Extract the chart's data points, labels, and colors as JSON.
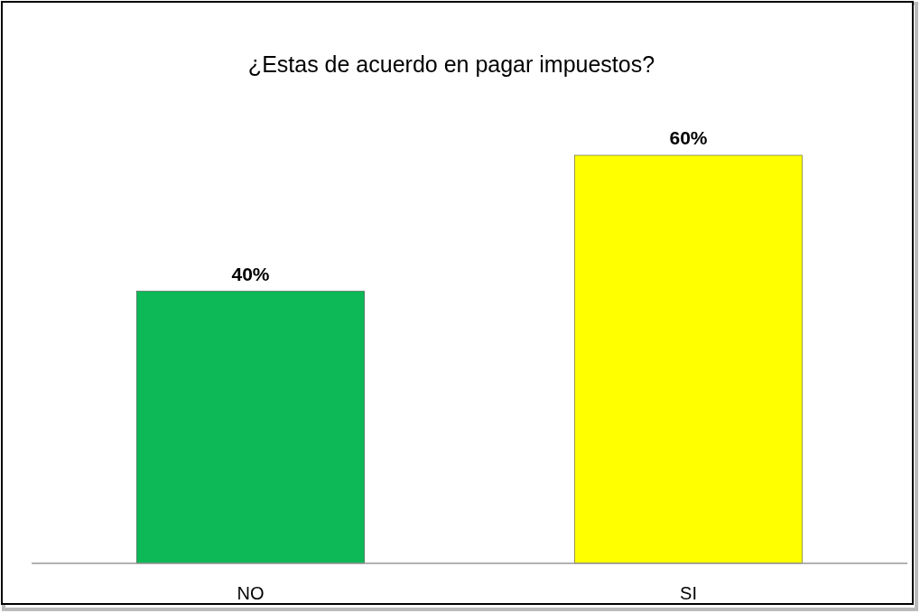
{
  "chart_data": {
    "type": "bar",
    "title": "¿Estas de acuerdo en pagar impuestos?",
    "categories": [
      "NO",
      "SI"
    ],
    "values": [
      40,
      60
    ],
    "colors": [
      "#0cb956",
      "#ffff00"
    ],
    "value_labels": [
      "40%",
      "60%"
    ]
  }
}
